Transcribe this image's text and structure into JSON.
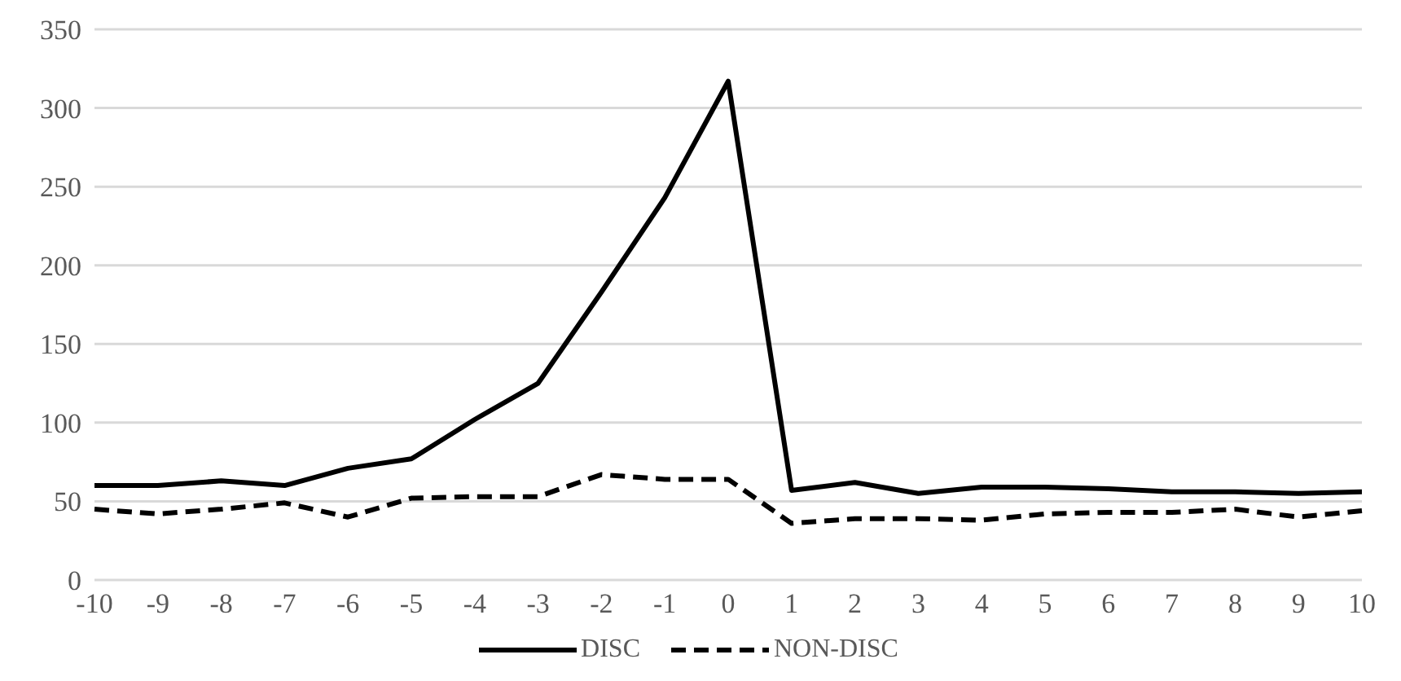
{
  "chart_data": {
    "type": "line",
    "categories": [
      "-10",
      "-9",
      "-8",
      "-7",
      "-6",
      "-5",
      "-4",
      "-3",
      "-2",
      "-1",
      "0",
      "1",
      "2",
      "3",
      "4",
      "5",
      "6",
      "7",
      "8",
      "9",
      "10"
    ],
    "series": [
      {
        "name": "DISC",
        "color": "#000000",
        "line_style": "solid",
        "values": [
          60,
          60,
          63,
          60,
          71,
          77,
          102,
          125,
          183,
          243,
          317,
          57,
          62,
          55,
          59,
          59,
          58,
          56,
          56,
          55,
          56
        ]
      },
      {
        "name": "NON-DISC",
        "color": "#000000",
        "line_style": "dashed",
        "values": [
          45,
          42,
          45,
          49,
          40,
          52,
          53,
          53,
          67,
          64,
          64,
          36,
          39,
          39,
          38,
          42,
          43,
          43,
          45,
          40,
          44
        ]
      }
    ],
    "ylim": [
      0,
      350
    ],
    "yticks": [
      0,
      50,
      100,
      150,
      200,
      250,
      300,
      350
    ],
    "grid": "y",
    "legend": "bottom",
    "marker": "none"
  }
}
